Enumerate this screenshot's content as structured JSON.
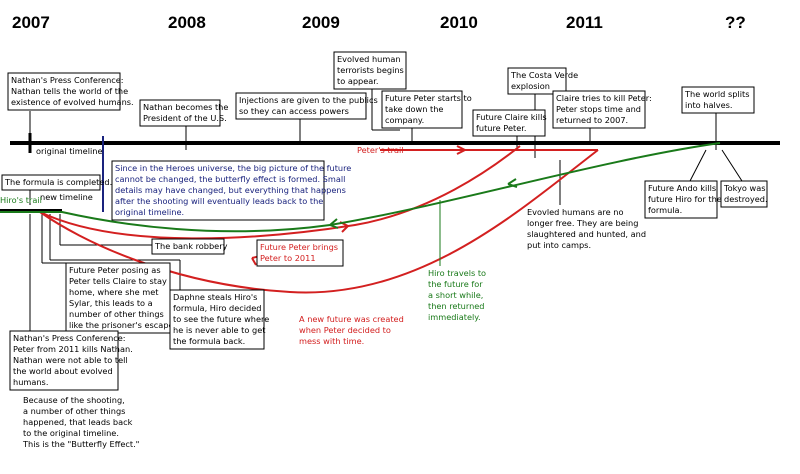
{
  "years": [
    "2007",
    "2008",
    "2009",
    "2010",
    "2011",
    "??"
  ],
  "labels": {
    "original_timeline": "original timeline",
    "new_timeline": "new timeline",
    "hiros_trail": "Hiro's trail",
    "peters_trail": "Peter's trail"
  },
  "boxes": [
    {
      "lines": [
        "Nathan's Press Conference:",
        "Nathan tells the world of the",
        "existence of evolved humans."
      ]
    },
    {
      "lines": [
        "Nathan becomes the",
        "President of the U.S."
      ]
    },
    {
      "lines": [
        "Injections are given to the publics",
        "so they can access powers"
      ]
    },
    {
      "lines": [
        "Evolved human",
        "terrorists begins",
        "to appear."
      ]
    },
    {
      "lines": [
        "Future Peter starts to",
        "take down the",
        "company."
      ]
    },
    {
      "lines": [
        "The Costa Verde",
        "explosion"
      ]
    },
    {
      "lines": [
        "Future Claire kills",
        "future Peter."
      ]
    },
    {
      "lines": [
        "Claire tries to kill Peter:",
        "Peter stops time and",
        "returned to 2007."
      ]
    },
    {
      "lines": [
        "The world splits",
        "into halves."
      ]
    },
    {
      "lines": [
        "The formula is completed."
      ]
    },
    {
      "lines": [
        "Since in the Heroes universe, the big picture of the future",
        "cannot be changed, the butterfly effect is formed. Small",
        "details may have changed, but everything that happens",
        "after the shooting will eventually leads back to the",
        "original timeline."
      ]
    },
    {
      "lines": [
        "Future Ando kills",
        "future Hiro for the",
        "formula."
      ]
    },
    {
      "lines": [
        "Tokyo was",
        "destroyed."
      ]
    },
    {
      "lines": [
        "Evovled humans are no",
        "longer free. They are being",
        "slaughtered and hunted, and",
        "put into camps."
      ]
    },
    {
      "lines": [
        "The bank robbery"
      ]
    },
    {
      "lines": [
        "Future Peter brings",
        "Peter to 2011"
      ]
    },
    {
      "lines": [
        "Hiro travels to",
        "the future for",
        "a short while,",
        "then returned",
        "immediately."
      ]
    },
    {
      "lines": [
        "Future Peter posing as",
        "Peter tells Claire to stay",
        "home, where she met",
        "Sylar, this leads to a",
        "number of other things",
        "like the prisoner's escape."
      ]
    },
    {
      "lines": [
        "Daphne steals Hiro's",
        "formula, Hiro decided",
        "to see the future where",
        "he is never able to get",
        "the formula back."
      ]
    },
    {
      "lines": [
        "A new future was created",
        "when Peter decided to",
        "mess with time."
      ]
    },
    {
      "lines": [
        "Nathan's Press Conference:",
        "Peter from 2011 kills Nathan.",
        "Nathan were not able to tell",
        "the world about evolved",
        "humans."
      ]
    },
    {
      "lines": [
        "Because of the shooting,",
        "a number of other things",
        "happened, that leads back",
        "to the original timeline.",
        "This is the \"Butterfly Effect.\""
      ]
    }
  ]
}
